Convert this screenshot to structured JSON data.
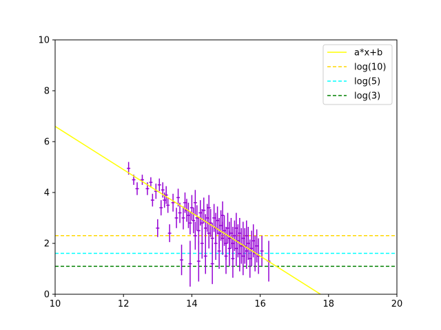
{
  "chart_data": {
    "type": "scatter",
    "title": "",
    "xlabel": "",
    "ylabel": "",
    "xlim": [
      10,
      20
    ],
    "ylim": [
      0,
      10
    ],
    "x_ticks": [
      10,
      12,
      14,
      16,
      18,
      20
    ],
    "y_ticks": [
      0,
      2,
      4,
      6,
      8,
      10
    ],
    "grid": false,
    "legend": {
      "location": "top-right",
      "entries": [
        {
          "label": "a*x+b",
          "color": "#ffff00",
          "style": "solid"
        },
        {
          "label": "log(10)",
          "color": "#ffd700",
          "style": "dashed"
        },
        {
          "label": "log(5)",
          "color": "#00ffff",
          "style": "dashed"
        },
        {
          "label": "log(3)",
          "color": "#008000",
          "style": "dashed"
        }
      ]
    },
    "fit_line": {
      "label": "a*x+b",
      "slope": -0.85,
      "intercept": 15.1,
      "color": "#ffff00"
    },
    "hlines": [
      {
        "label": "log(10)",
        "y": 2.3026,
        "color": "#ffd700"
      },
      {
        "label": "log(5)",
        "y": 1.6094,
        "color": "#00ffff"
      },
      {
        "label": "log(3)",
        "y": 1.0986,
        "color": "#008000"
      }
    ],
    "errorbar_series": {
      "color": "#9400d3",
      "points": [
        [
          12.15,
          4.95,
          0.05,
          0.25
        ],
        [
          12.3,
          4.5,
          0.05,
          0.2
        ],
        [
          12.4,
          4.15,
          0.05,
          0.25
        ],
        [
          12.55,
          4.5,
          0.05,
          0.2
        ],
        [
          12.7,
          4.15,
          0.05,
          0.25
        ],
        [
          12.8,
          4.4,
          0.05,
          0.2
        ],
        [
          12.85,
          3.7,
          0.05,
          0.25
        ],
        [
          12.95,
          4.05,
          0.05,
          0.3
        ],
        [
          13.0,
          2.6,
          0.05,
          0.35
        ],
        [
          13.05,
          4.3,
          0.05,
          0.25
        ],
        [
          13.1,
          3.4,
          0.05,
          0.3
        ],
        [
          13.15,
          4.1,
          0.05,
          0.3
        ],
        [
          13.2,
          3.7,
          0.05,
          0.3
        ],
        [
          13.25,
          3.9,
          0.05,
          0.35
        ],
        [
          13.3,
          3.5,
          0.05,
          0.3
        ],
        [
          13.35,
          2.4,
          0.05,
          0.35
        ],
        [
          13.45,
          3.6,
          0.05,
          0.35
        ],
        [
          13.55,
          3.0,
          0.05,
          0.4
        ],
        [
          13.6,
          3.8,
          0.05,
          0.35
        ],
        [
          13.65,
          3.2,
          0.05,
          0.4
        ],
        [
          13.7,
          1.35,
          0.05,
          0.6
        ],
        [
          13.75,
          3.0,
          0.05,
          0.45
        ],
        [
          13.8,
          3.6,
          0.05,
          0.4
        ],
        [
          13.85,
          3.3,
          0.05,
          0.45
        ],
        [
          13.9,
          3.1,
          0.05,
          0.5
        ],
        [
          13.95,
          2.8,
          0.05,
          0.45
        ],
        [
          13.95,
          1.2,
          0.05,
          0.9
        ],
        [
          14.0,
          3.4,
          0.05,
          0.5
        ],
        [
          14.05,
          2.9,
          0.05,
          0.5
        ],
        [
          14.1,
          2.3,
          0.05,
          0.55
        ],
        [
          14.1,
          3.6,
          0.05,
          0.5
        ],
        [
          14.15,
          3.0,
          0.05,
          0.5
        ],
        [
          14.2,
          2.5,
          0.05,
          0.55
        ],
        [
          14.2,
          1.3,
          0.05,
          0.8
        ],
        [
          14.25,
          3.2,
          0.05,
          0.5
        ],
        [
          14.3,
          2.8,
          0.05,
          0.55
        ],
        [
          14.3,
          2.0,
          0.05,
          0.6
        ],
        [
          14.35,
          3.3,
          0.05,
          0.5
        ],
        [
          14.4,
          2.6,
          0.05,
          0.55
        ],
        [
          14.4,
          1.5,
          0.05,
          0.7
        ],
        [
          14.45,
          3.0,
          0.05,
          0.55
        ],
        [
          14.5,
          2.4,
          0.05,
          0.6
        ],
        [
          14.5,
          3.4,
          0.05,
          0.5
        ],
        [
          14.55,
          2.8,
          0.05,
          0.55
        ],
        [
          14.6,
          2.2,
          0.05,
          0.6
        ],
        [
          14.6,
          1.2,
          0.05,
          0.8
        ],
        [
          14.65,
          3.0,
          0.05,
          0.55
        ],
        [
          14.7,
          2.6,
          0.05,
          0.6
        ],
        [
          14.7,
          2.0,
          0.05,
          0.65
        ],
        [
          14.75,
          2.9,
          0.05,
          0.55
        ],
        [
          14.8,
          2.4,
          0.05,
          0.6
        ],
        [
          14.8,
          1.7,
          0.05,
          0.7
        ],
        [
          14.85,
          2.7,
          0.05,
          0.6
        ],
        [
          14.9,
          2.2,
          0.05,
          0.65
        ],
        [
          14.9,
          3.1,
          0.05,
          0.55
        ],
        [
          14.95,
          2.5,
          0.05,
          0.6
        ],
        [
          15.0,
          2.0,
          0.05,
          0.65
        ],
        [
          15.0,
          1.5,
          0.05,
          0.7
        ],
        [
          15.05,
          2.6,
          0.05,
          0.6
        ],
        [
          15.1,
          2.2,
          0.05,
          0.65
        ],
        [
          15.1,
          1.8,
          0.05,
          0.7
        ],
        [
          15.15,
          2.4,
          0.05,
          0.6
        ],
        [
          15.2,
          2.0,
          0.05,
          0.65
        ],
        [
          15.2,
          1.4,
          0.05,
          0.75
        ],
        [
          15.25,
          2.3,
          0.05,
          0.6
        ],
        [
          15.3,
          1.8,
          0.05,
          0.7
        ],
        [
          15.3,
          2.6,
          0.05,
          0.6
        ],
        [
          15.35,
          2.1,
          0.05,
          0.65
        ],
        [
          15.4,
          1.6,
          0.05,
          0.7
        ],
        [
          15.4,
          2.4,
          0.05,
          0.6
        ],
        [
          15.45,
          1.9,
          0.05,
          0.7
        ],
        [
          15.5,
          2.2,
          0.05,
          0.65
        ],
        [
          15.5,
          1.5,
          0.05,
          0.75
        ],
        [
          15.55,
          1.9,
          0.05,
          0.7
        ],
        [
          15.6,
          2.3,
          0.05,
          0.6
        ],
        [
          15.6,
          1.7,
          0.05,
          0.7
        ],
        [
          15.65,
          2.0,
          0.05,
          0.65
        ],
        [
          15.7,
          1.4,
          0.05,
          0.75
        ],
        [
          15.75,
          1.8,
          0.05,
          0.7
        ],
        [
          15.8,
          2.1,
          0.05,
          0.65
        ],
        [
          15.85,
          1.6,
          0.05,
          0.7
        ],
        [
          15.9,
          1.9,
          0.05,
          0.65
        ],
        [
          15.95,
          1.5,
          0.05,
          0.7
        ],
        [
          16.05,
          1.7,
          0.05,
          0.6
        ],
        [
          16.25,
          1.3,
          0.05,
          0.8
        ]
      ]
    }
  }
}
